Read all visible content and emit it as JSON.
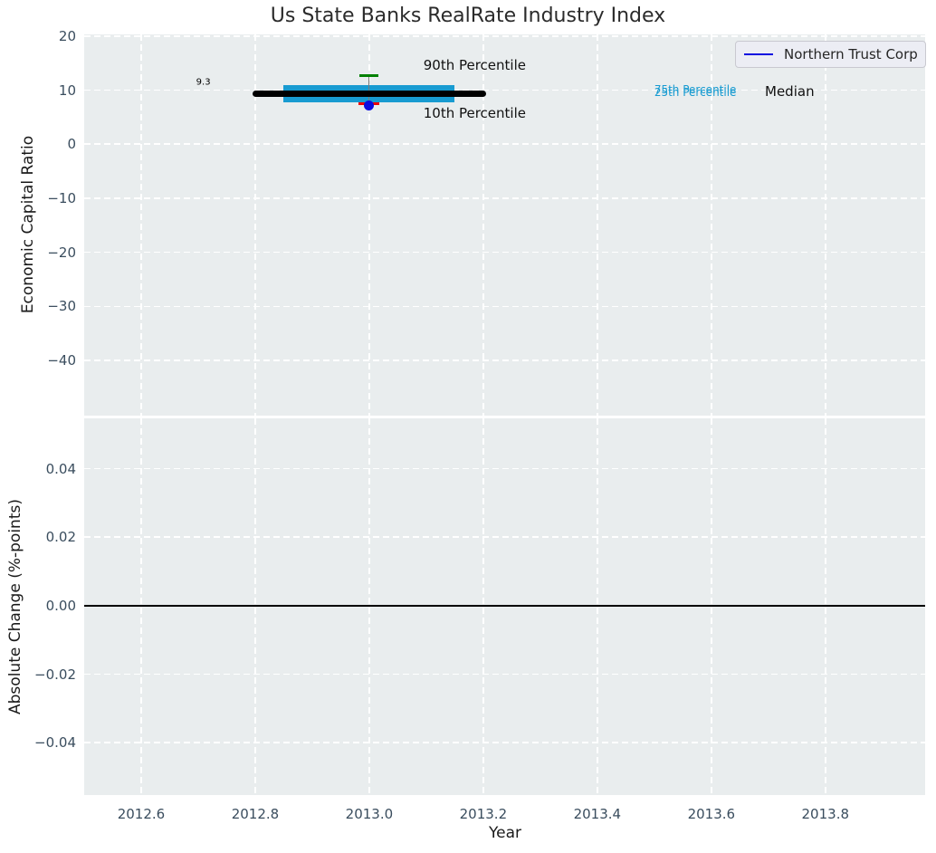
{
  "figure": {
    "title": "Us State Banks RealRate Industry Index",
    "background": "#ffffff",
    "axes_background": "#e9edee",
    "grid_color": "#ffffff",
    "tick_color": "#3a4d5e"
  },
  "legend": {
    "label": "Northern Trust Corp",
    "line_color": "#0b0be0",
    "position": "upper right"
  },
  "chart_data": [
    {
      "id": "economic-capital-ratio",
      "type": "boxplot",
      "title": "Us State Banks RealRate Industry Index",
      "xlabel": "",
      "ylabel": "Economic Capital Ratio",
      "xlim": [
        2012.5,
        2013.975
      ],
      "ylim": [
        -50.2,
        20.3
      ],
      "grid": "white dashed, on",
      "xticks": [
        2012.6,
        2012.8,
        2013.0,
        2013.2,
        2013.4,
        2013.6,
        2013.8
      ],
      "yticks": [
        {
          "v": 20,
          "label": "20"
        },
        {
          "v": 10,
          "label": "10"
        },
        {
          "v": 0,
          "label": "0"
        },
        {
          "v": -10,
          "label": "−10"
        },
        {
          "v": -20,
          "label": "−20"
        },
        {
          "v": -30,
          "label": "−30"
        },
        {
          "v": -40,
          "label": "−40"
        }
      ],
      "box": {
        "x_center": 2013.0,
        "p90": 12.7,
        "p75": 10.9,
        "median": 9.3,
        "p25": 7.7,
        "p10": 7.5,
        "box_x": [
          2012.85,
          2013.15
        ],
        "median_x": [
          2012.795,
          2013.205
        ],
        "colors": {
          "box": "#189bd1",
          "median": "#000000",
          "p90_cap": "#008000",
          "p10_cap": "#ee0000",
          "whisker": "#7a7a7a"
        }
      },
      "company_point": {
        "name": "Northern Trust Corp",
        "x": 2013.0,
        "y": 7.2,
        "color": "#0b0be0"
      },
      "annotations": [
        {
          "name": "median-value-label",
          "text": "9.3",
          "x": 2012.709,
          "y": 11.4,
          "size": 10,
          "color": "#000000",
          "align": "center"
        },
        {
          "name": "p90-label",
          "text": "90th Percentile",
          "x": 2013.095,
          "y": 14.6,
          "size": 15,
          "color": "#111111",
          "align": "left"
        },
        {
          "name": "p10-label",
          "text": "10th Percentile",
          "x": 2013.095,
          "y": 5.7,
          "size": 15,
          "color": "#111111",
          "align": "left"
        },
        {
          "name": "p75-label",
          "text": "75th Percentile",
          "x": 2013.5,
          "y": 10.1,
          "size": 12,
          "color": "#189bd1",
          "align": "left"
        },
        {
          "name": "p25-label",
          "text": "25th Percentile",
          "x": 2013.5,
          "y": 9.5,
          "size": 12,
          "color": "#189bd1",
          "align": "left"
        },
        {
          "name": "median-label",
          "text": "Median",
          "x": 2013.694,
          "y": 9.7,
          "size": 15,
          "color": "#111111",
          "align": "left"
        }
      ]
    },
    {
      "id": "absolute-change",
      "type": "line",
      "xlabel": "Year",
      "ylabel": "Absolute Change (%-points)",
      "xlim": [
        2012.5,
        2013.975
      ],
      "ylim": [
        -0.0553,
        0.0547
      ],
      "grid": "white dashed, on",
      "xticks": [
        {
          "v": 2012.6,
          "label": "2012.6"
        },
        {
          "v": 2012.8,
          "label": "2012.8"
        },
        {
          "v": 2013.0,
          "label": "2013.0"
        },
        {
          "v": 2013.2,
          "label": "2013.2"
        },
        {
          "v": 2013.4,
          "label": "2013.4"
        },
        {
          "v": 2013.6,
          "label": "2013.6"
        },
        {
          "v": 2013.8,
          "label": "2013.8"
        }
      ],
      "yticks": [
        {
          "v": 0.04,
          "label": "0.04"
        },
        {
          "v": 0.02,
          "label": "0.02"
        },
        {
          "v": 0.0,
          "label": "0.00"
        },
        {
          "v": -0.02,
          "label": "−0.02"
        },
        {
          "v": -0.04,
          "label": "−0.04"
        }
      ],
      "zero_line": {
        "y": 0.0,
        "color": "#000000"
      },
      "series": []
    }
  ]
}
